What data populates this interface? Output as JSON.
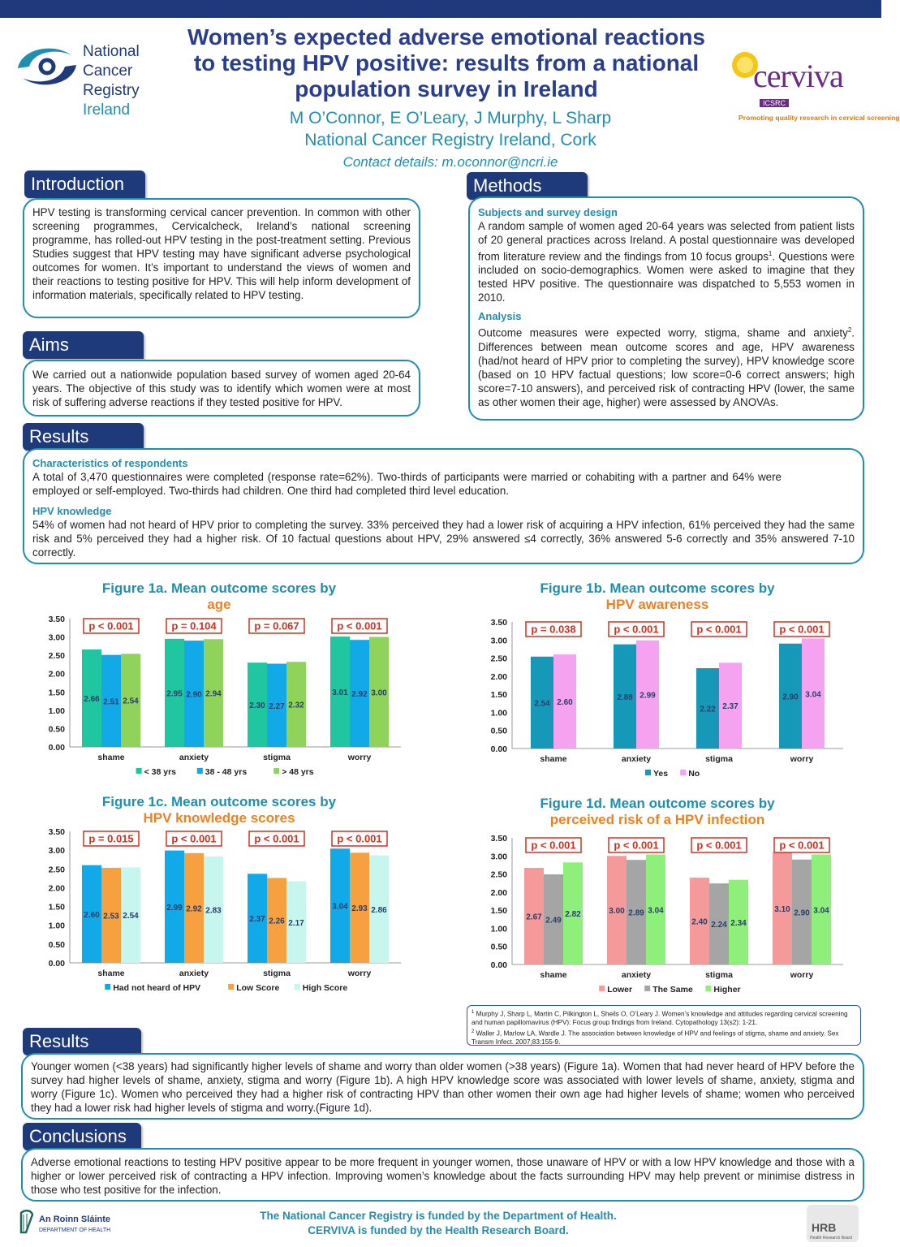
{
  "header": {
    "title_line1": "Women’s expected adverse emotional reactions",
    "title_line2": "to testing HPV positive: results from a national",
    "title_line3": "population survey in Ireland",
    "authors": "M O’Connor, E O’Leary, J Murphy, L Sharp",
    "affiliation": "National Cancer Registry Ireland, Cork",
    "contact": "Contact details:  m.oconnor@ncri.ie"
  },
  "logos": {
    "ncri_line1": "National",
    "ncri_line2": "Cancer",
    "ncri_line3": "Registry",
    "ncri_line4": "Ireland",
    "cerviva_name": "cerviva",
    "cerviva_sub": "ICSRC",
    "cerviva_tagline": "Promoting quality research in cervical screening",
    "doh_name": "An Roinn Sláinte",
    "doh_sub": "DEPARTMENT OF HEALTH",
    "hrb_name": "HRB",
    "hrb_sub": "Health Research Board"
  },
  "colors": {
    "navy": "#1f3a7a",
    "teal": "#1f8fb0",
    "orange": "#f08020",
    "red_box": "#d03020"
  },
  "introduction": {
    "heading": "Introduction",
    "text": "HPV testing is transforming cervical cancer prevention. In common with other screening programmes, Cervicalcheck, Ireland’s national screening programme, has rolled-out HPV testing in the post-treatment setting. Previous Studies suggest that HPV testing may have significant adverse psychological outcomes for women. It’s important to understand the views of women and their reactions to testing positive for HPV. This will help inform development of information materials, specifically related to HPV testing."
  },
  "aims": {
    "heading": "Aims",
    "text": "We carried out a nationwide population based survey of women aged 20-64 years. The objective of this study was to identify which women were at most risk of suffering adverse reactions if they tested positive for HPV."
  },
  "methods": {
    "heading": "Methods",
    "sub1": "Subjects and survey design",
    "text1a": "A random sample of women aged 20-64 years was selected from patient lists of 20 general practices across Ireland. A postal questionnaire was developed from literature review and the findings from 10 focus groups",
    "text1_sup": "1",
    "text1b": ". Questions were included on socio-demographics. Women were asked to imagine that they tested HPV positive. The questionnaire was dispatched to 5,553 women in 2010.",
    "sub2": "Analysis",
    "text2a": "Outcome measures were expected worry, stigma, shame and anxiety",
    "text2_sup": "2",
    "text2b": ". Differences between mean outcome scores and age, HPV awareness (had/not heard of HPV prior to completing the survey), HPV knowledge score (based on 10 HPV factual questions; low score=0-6 correct answers; high score=7-10 answers), and perceived risk of contracting HPV (lower, the same as other women their age, higher) were assessed by ANOVAs."
  },
  "results1": {
    "heading": "Results",
    "sub1": "Characteristics of respondents",
    "text1": "A total of 3,470 questionnaires were completed (response rate=62%). Two-thirds of participants were married or cohabiting with a partner and 64% were employed or self-employed. Two-thirds had children. One third had completed third level education.",
    "sub2": "HPV knowledge",
    "text2": "54% of women had not heard of HPV prior to completing the survey.  33% perceived they had a lower risk of acquiring a HPV infection, 61% perceived they had the same risk and 5% perceived they had a higher risk. Of 10 factual questions about HPV, 29% answered ≤4 correctly, 36% answered 5-6 correctly and 35% answered 7-10 correctly."
  },
  "figures": [
    {
      "title_a": "Figure 1a. Mean outcome scores by",
      "title_b": "age"
    },
    {
      "title_a": "Figure 1b. Mean outcome scores by",
      "title_b": "HPV awareness"
    },
    {
      "title_a": "Figure 1c. Mean outcome scores by",
      "title_b": "HPV knowledge scores"
    },
    {
      "title_a": "Figure 1d. Mean outcome scores by",
      "title_b": "perceived risk of a HPV infection"
    }
  ],
  "chart_data": [
    {
      "type": "bar",
      "categories": [
        "shame",
        "anxiety",
        "stigma",
        "worry"
      ],
      "series": [
        {
          "name": "< 38 yrs",
          "values": [
            2.66,
            2.95,
            2.3,
            3.01
          ],
          "color": "#1fc6a0"
        },
        {
          "name": "38 - 48 yrs",
          "values": [
            2.51,
            2.9,
            2.27,
            2.92
          ],
          "color": "#12a9e8"
        },
        {
          "name": "> 48 yrs",
          "values": [
            2.54,
            2.94,
            2.32,
            3.0
          ],
          "color": "#8fd35a"
        }
      ],
      "pvalues": [
        "p < 0.001",
        "p = 0.104",
        "p = 0.067",
        "p < 0.001"
      ],
      "yticks": [
        "0.00",
        "0.50",
        "1.00",
        "1.50",
        "2.00",
        "2.50",
        "3.00",
        "3.50"
      ],
      "ylim": [
        0,
        3.5
      ]
    },
    {
      "type": "bar",
      "categories": [
        "shame",
        "anxiety",
        "stigma",
        "worry"
      ],
      "series": [
        {
          "name": "Yes",
          "values": [
            2.54,
            2.88,
            2.22,
            2.9
          ],
          "color": "#1699b8"
        },
        {
          "name": "No",
          "values": [
            2.6,
            2.99,
            2.37,
            3.04
          ],
          "color": "#f5a3f0"
        }
      ],
      "pvalues": [
        "p = 0.038",
        "p < 0.001",
        "p < 0.001",
        "p < 0.001"
      ],
      "yticks": [
        "0.00",
        "0.50",
        "1.00",
        "1.50",
        "2.00",
        "2.50",
        "3.00",
        "3.50"
      ],
      "ylim": [
        0,
        3.5
      ]
    },
    {
      "type": "bar",
      "categories": [
        "shame",
        "anxiety",
        "stigma",
        "worry"
      ],
      "series": [
        {
          "name": "Had not heard of HPV",
          "values": [
            2.6,
            2.99,
            2.37,
            3.04
          ],
          "color": "#12a9e8"
        },
        {
          "name": "Low Score",
          "values": [
            2.53,
            2.92,
            2.26,
            2.93
          ],
          "color": "#f7a040"
        },
        {
          "name": "High Score",
          "values": [
            2.54,
            2.83,
            2.17,
            2.86
          ],
          "color": "#c7f6ee"
        }
      ],
      "pvalues": [
        "p = 0.015",
        "p < 0.001",
        "p < 0.001",
        "p < 0.001"
      ],
      "yticks": [
        "0.00",
        "0.50",
        "1.00",
        "1.50",
        "2.00",
        "2.50",
        "3.00",
        "3.50"
      ],
      "ylim": [
        0,
        3.5
      ]
    },
    {
      "type": "bar",
      "categories": [
        "shame",
        "anxiety",
        "stigma",
        "worry"
      ],
      "series": [
        {
          "name": "Lower",
          "values": [
            2.67,
            3.0,
            2.4,
            3.1
          ],
          "color": "#f59a9a"
        },
        {
          "name": "The Same",
          "values": [
            2.49,
            2.89,
            2.24,
            2.9
          ],
          "color": "#a5a5a5"
        },
        {
          "name": "Higher",
          "values": [
            2.82,
            3.04,
            2.34,
            3.04
          ],
          "color": "#8ef07a"
        }
      ],
      "pvalues": [
        "p < 0.001",
        "p < 0.001",
        "p < 0.001",
        "p < 0.001"
      ],
      "yticks": [
        "0.00",
        "0.50",
        "1.00",
        "1.50",
        "2.00",
        "2.50",
        "3.00",
        "3.50"
      ],
      "ylim": [
        0,
        3.5
      ]
    }
  ],
  "references": {
    "ref1_num": "1",
    "ref1": "Murphy J, Sharp L, Martin C, Pilkington L, Sheils O, O’Leary J. Women’s knowledge and attitudes regarding cervical screening and human papillomavirus (HPV): Focus group findings from Ireland. Cytopathology 13(s2): 1-21.",
    "ref2_num": "2",
    "ref2": "Waller J, Marlow LA, Wardle J. The association between knowledge of HPV and feelings of stigma, shame and anxiety. Sex Transm Infect. 2007;83:155-9."
  },
  "results2": {
    "heading": "Results",
    "text": "Younger women (<38 years) had significantly higher levels of shame and worry than older women (>38 years) (Figure 1a). Women that had never heard of HPV before the survey had higher levels of shame, anxiety, stigma and worry (Figure 1b). A high HPV knowledge score was associated with lower levels of shame, anxiety, stigma and worry (Figure 1c). Women who perceived they had a higher risk of contracting HPV than other women their own age had higher levels of shame; women who perceived they had a lower risk had higher levels of stigma and worry.(Figure 1d)."
  },
  "conclusions": {
    "heading": "Conclusions",
    "text": "Adverse emotional reactions to testing HPV positive appear to be more frequent in younger women, those unaware of HPV or with a low HPV knowledge and those with a higher or lower perceived risk of contracting a HPV infection. Improving women’s knowledge about the facts surrounding HPV may help prevent or minimise distress in those who test positive for the infection."
  },
  "footer": {
    "line1": "The National Cancer Registry is funded by the Department of Health.",
    "line2": "CERVIVA is funded by the Health Research Board."
  }
}
